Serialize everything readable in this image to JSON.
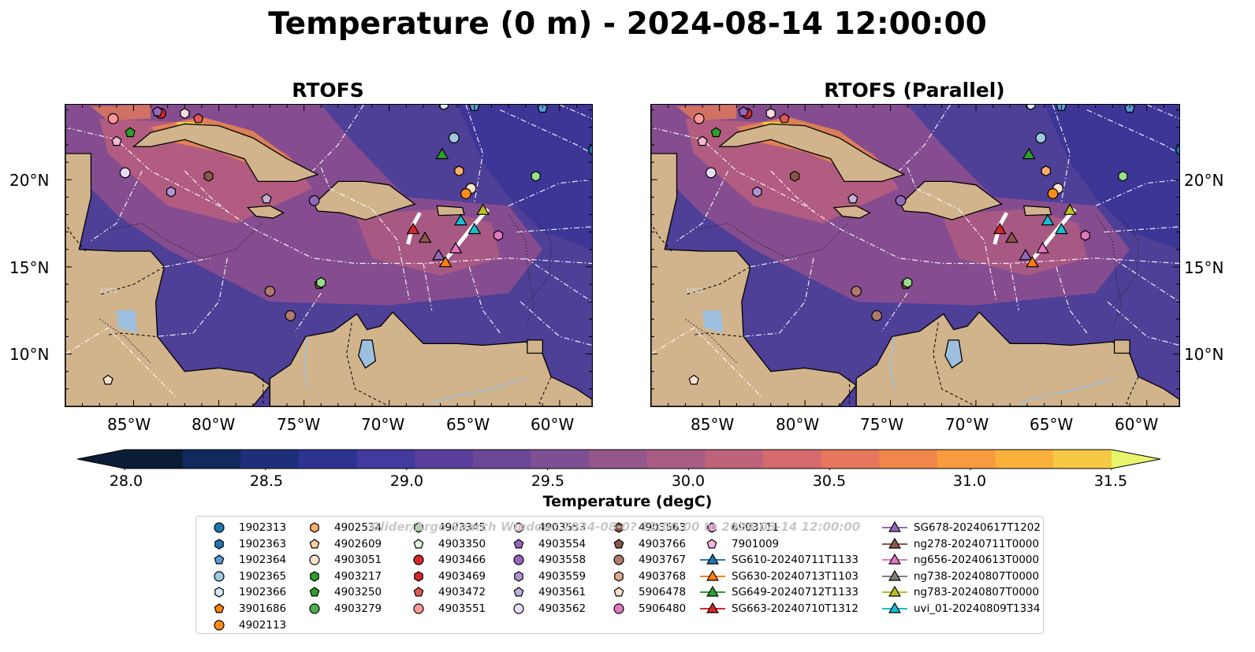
{
  "title": "Temperature (0 m) - 2024-08-14 12:00:00",
  "panels": [
    {
      "title": "RTOFS"
    },
    {
      "title": "RTOFS (Parallel)"
    }
  ],
  "axes": {
    "lon_ticks": [
      "85°W",
      "80°W",
      "75°W",
      "70°W",
      "65°W",
      "60°W"
    ],
    "lat_ticks": [
      "20°N",
      "15°N",
      "10°N"
    ],
    "contour_label": "1000"
  },
  "colorbar": {
    "label": "Temperature (degC)",
    "ticks": [
      "28.0",
      "28.5",
      "29.0",
      "29.5",
      "30.0",
      "30.5",
      "31.0",
      "31.5"
    ],
    "colors": [
      "#0b1d36",
      "#102a5e",
      "#1e2f7a",
      "#2c3391",
      "#423a9e",
      "#5a3f9c",
      "#6d4797",
      "#7e4f93",
      "#93578c",
      "#a95d84",
      "#bf637a",
      "#d56b6c",
      "#e6775c",
      "#f1864b",
      "#f89b3e",
      "#fab13b",
      "#f6c944"
    ],
    "under_color": "#0b1d36",
    "over_color": "#e9f56a"
  },
  "legend_watermark": "Glider/Argo Search Window: 2024-08-0? 12:00:00 to 2024-08-14 12:00:00",
  "legend": [
    {
      "label": "1902313",
      "marker": "circle",
      "color": "#1f77b4"
    },
    {
      "label": "1902363",
      "marker": "hexagon",
      "color": "#1f77b4"
    },
    {
      "label": "1902364",
      "marker": "pentagon",
      "color": "#5b9bd5"
    },
    {
      "label": "1902365",
      "marker": "circle",
      "color": "#9ecae1"
    },
    {
      "label": "1902366",
      "marker": "hexagon",
      "color": "#d6eaf8"
    },
    {
      "label": "3901686",
      "marker": "pentagon",
      "color": "#ff7f0e"
    },
    {
      "label": "4902113",
      "marker": "circle",
      "color": "#ff8c1a"
    },
    {
      "label": "4902534",
      "marker": "hexagon",
      "color": "#fdae6b"
    },
    {
      "label": "4902609",
      "marker": "pentagon",
      "color": "#fdd0a2"
    },
    {
      "label": "4903051",
      "marker": "circle",
      "color": "#fde5cc"
    },
    {
      "label": "4903217",
      "marker": "hexagon",
      "color": "#2ca02c"
    },
    {
      "label": "4903250",
      "marker": "pentagon",
      "color": "#2ca02c"
    },
    {
      "label": "4903279",
      "marker": "circle",
      "color": "#4caf50"
    },
    {
      "label": "4903345",
      "marker": "hexagon",
      "color": "#98df8a"
    },
    {
      "label": "4903350",
      "marker": "pentagon",
      "color": "#e5f5e0"
    },
    {
      "label": "4903466",
      "marker": "circle",
      "color": "#d62728"
    },
    {
      "label": "4903469",
      "marker": "hexagon",
      "color": "#d62728"
    },
    {
      "label": "4903472",
      "marker": "pentagon",
      "color": "#e15759"
    },
    {
      "label": "4903551",
      "marker": "circle",
      "color": "#ff9896"
    },
    {
      "label": "4903553",
      "marker": "hexagon",
      "color": "#fddcdc"
    },
    {
      "label": "4903554",
      "marker": "pentagon",
      "color": "#9467bd"
    },
    {
      "label": "4903558",
      "marker": "circle",
      "color": "#9467bd"
    },
    {
      "label": "4903559",
      "marker": "hexagon",
      "color": "#b294d6"
    },
    {
      "label": "4903561",
      "marker": "pentagon",
      "color": "#c5b0d5"
    },
    {
      "label": "4903562",
      "marker": "circle",
      "color": "#e8dcf5"
    },
    {
      "label": "4903563",
      "marker": "hexagon",
      "color": "#8c564b"
    },
    {
      "label": "4903766",
      "marker": "pentagon",
      "color": "#8c564b"
    },
    {
      "label": "4903767",
      "marker": "circle",
      "color": "#b07a6c"
    },
    {
      "label": "4903768",
      "marker": "hexagon",
      "color": "#e0a990"
    },
    {
      "label": "5906478",
      "marker": "pentagon",
      "color": "#fde0d0"
    },
    {
      "label": "5906480",
      "marker": "circle",
      "color": "#e377c2"
    },
    {
      "label": "6903111",
      "marker": "hexagon",
      "color": "#e377c2"
    },
    {
      "label": "7901009",
      "marker": "pentagon",
      "color": "#f7b6d2"
    },
    {
      "label": "SG610-20240711T1133",
      "marker": "triangle-line",
      "color": "#1f77b4"
    },
    {
      "label": "SG630-20240713T1103",
      "marker": "triangle-line",
      "color": "#ff7f0e"
    },
    {
      "label": "SG649-20240712T1133",
      "marker": "triangle-line",
      "color": "#2ca02c"
    },
    {
      "label": "SG663-20240710T1312",
      "marker": "triangle-line",
      "color": "#d62728"
    },
    {
      "label": "SG678-20240617T1202",
      "marker": "triangle-line",
      "color": "#9467bd"
    },
    {
      "label": "ng278-20240711T0000",
      "marker": "triangle-line",
      "color": "#8c564b"
    },
    {
      "label": "ng656-20240613T0000",
      "marker": "triangle-line",
      "color": "#e377c2"
    },
    {
      "label": "ng738-20240807T0000",
      "marker": "triangle-line",
      "color": "#7f7f7f"
    },
    {
      "label": "ng783-20240807T0000",
      "marker": "triangle-line",
      "color": "#bcbd22"
    },
    {
      "label": "uvi_01-20240809T1334",
      "marker": "triangle-line",
      "color": "#17becf"
    }
  ],
  "observations": [
    {
      "id": "1902313",
      "lon": -58.0,
      "lat": 21.7
    },
    {
      "id": "4902113",
      "lon": -57.8,
      "lat": 21.5
    },
    {
      "id": "1902365",
      "lon": -66.2,
      "lat": 22.4
    },
    {
      "id": "4903051",
      "lon": -65.2,
      "lat": 19.5
    },
    {
      "id": "4902113",
      "lon": -65.5,
      "lat": 19.2
    },
    {
      "id": "4902534",
      "lon": -65.9,
      "lat": 20.5
    },
    {
      "id": "4903345",
      "lon": -61.4,
      "lat": 20.2
    },
    {
      "id": "4903558",
      "lon": -74.4,
      "lat": 18.8
    },
    {
      "id": "4903561",
      "lon": -77.2,
      "lat": 18.9
    },
    {
      "id": "4903559",
      "lon": -82.8,
      "lat": 19.3
    },
    {
      "id": "4903563",
      "lon": -80.6,
      "lat": 20.2
    },
    {
      "id": "4903562",
      "lon": -85.5,
      "lat": 20.4
    },
    {
      "id": "7901009",
      "lon": -86.0,
      "lat": 22.2
    },
    {
      "id": "4903250",
      "lon": -85.2,
      "lat": 22.7
    },
    {
      "id": "4903551",
      "lon": -86.2,
      "lat": 23.5
    },
    {
      "id": "4903466",
      "lon": -83.4,
      "lat": 23.8
    },
    {
      "id": "4903554",
      "lon": -83.6,
      "lat": 23.9
    },
    {
      "id": "4903553",
      "lon": -82.0,
      "lat": 23.8
    },
    {
      "id": "4903472",
      "lon": -81.2,
      "lat": 23.5
    },
    {
      "id": "1902366",
      "lon": -66.8,
      "lat": 24.3
    },
    {
      "id": "1902364",
      "lon": -65.0,
      "lat": 24.2
    },
    {
      "id": "1902364",
      "lon": -61.0,
      "lat": 24.1
    },
    {
      "id": "6903111",
      "lon": -63.6,
      "lat": 16.8
    },
    {
      "id": "4903767",
      "lon": -77.0,
      "lat": 13.6
    },
    {
      "id": "4903767",
      "lon": -75.8,
      "lat": 12.2
    },
    {
      "id": "4903766",
      "lon": -74.1,
      "lat": 14.0
    },
    {
      "id": "4903345",
      "lon": -74.0,
      "lat": 14.1
    },
    {
      "id": "5906478",
      "lon": -86.5,
      "lat": 8.5
    }
  ],
  "gliders": [
    {
      "id": "SG649-20240712T1133",
      "lon": -66.9,
      "lat": 21.4
    },
    {
      "id": "SG663-20240710T1312",
      "lon": -68.6,
      "lat": 17.1
    },
    {
      "id": "ng278-20240711T0000",
      "lon": -67.9,
      "lat": 16.6
    },
    {
      "id": "uvi_01-20240809T1334",
      "lon": -65.8,
      "lat": 17.6
    },
    {
      "id": "uvi_01-20240809T1334",
      "lon": -65.0,
      "lat": 17.1
    },
    {
      "id": "ng783-20240807T0000",
      "lon": -64.5,
      "lat": 18.2
    },
    {
      "id": "SG678-20240617T1202",
      "lon": -67.1,
      "lat": 15.6
    },
    {
      "id": "ng656-20240613T0000",
      "lon": -66.1,
      "lat": 16.0
    },
    {
      "id": "SG630-20240713T1103",
      "lon": -66.7,
      "lat": 15.2
    }
  ]
}
